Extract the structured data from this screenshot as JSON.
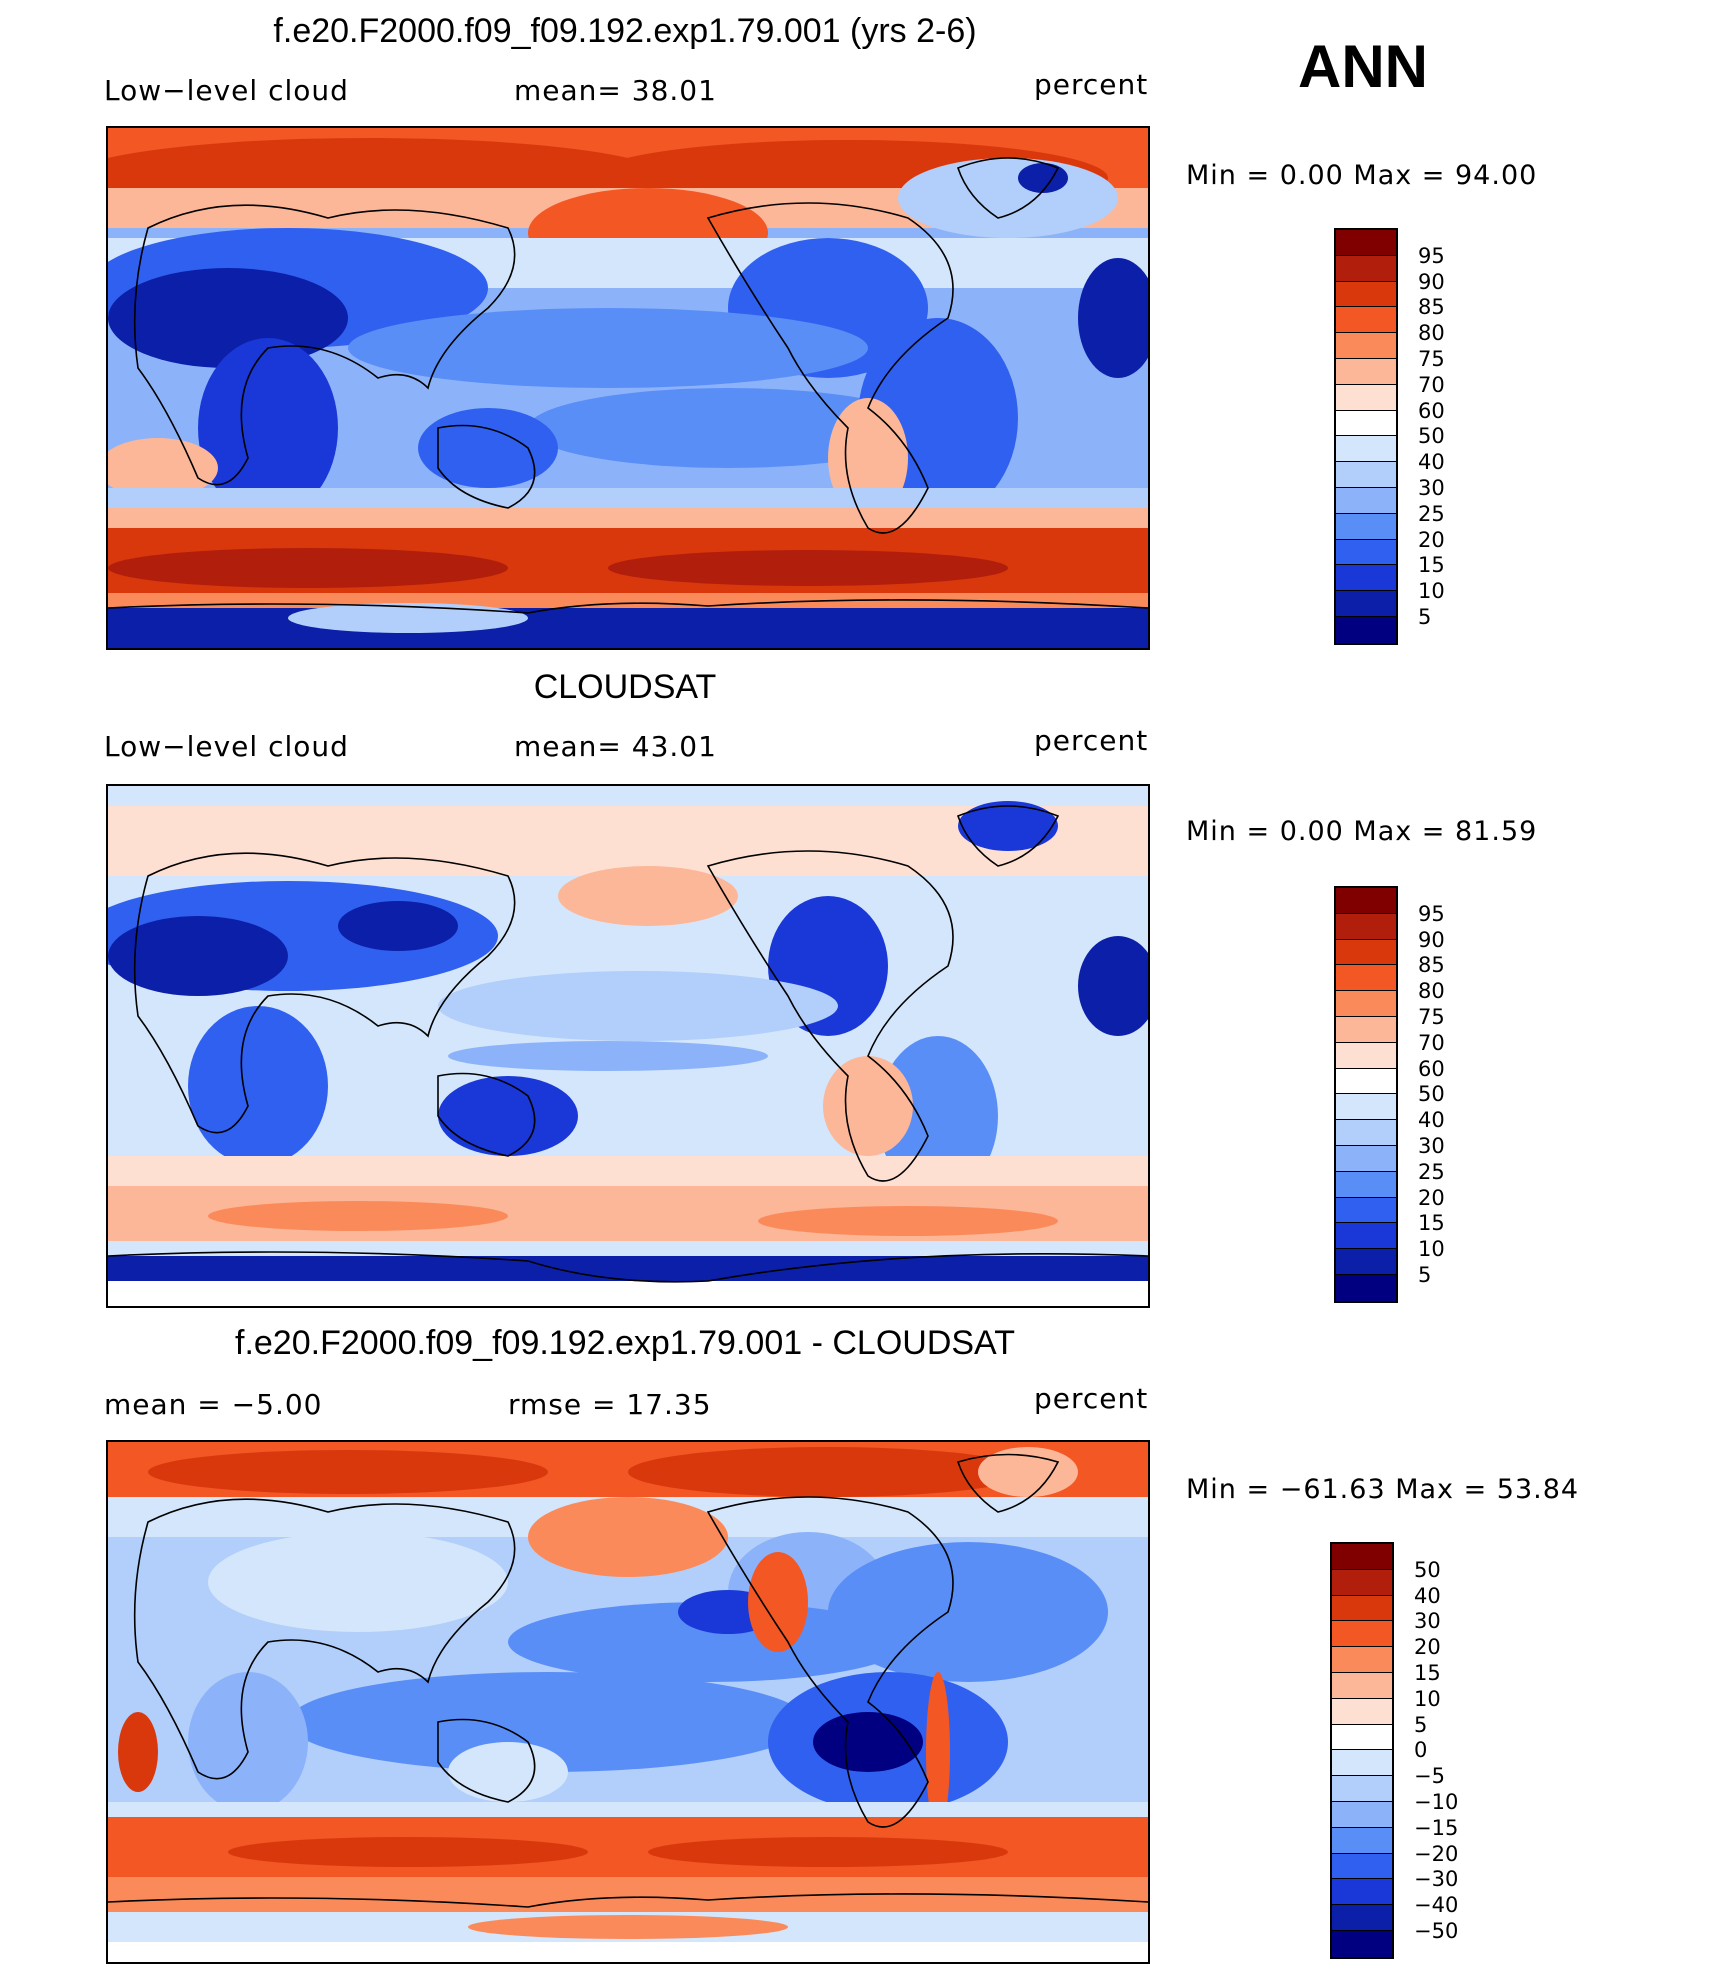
{
  "season": "ANN",
  "panels": [
    {
      "title": "f.e20.F2000.f09_f09.192.exp1.79.001 (yrs 2-6)",
      "left_text": "Low−level cloud",
      "center_text": "mean=   38.01",
      "right_text": "percent",
      "minmax": "Min  =     0.00  Max  =    94.00"
    },
    {
      "title": "CLOUDSAT",
      "left_text": "Low−level cloud",
      "center_text": "mean=   43.01",
      "right_text": "percent",
      "minmax": "Min  =     0.00  Max  =    81.59"
    },
    {
      "title": "f.e20.F2000.f09_f09.192.exp1.79.001 - CLOUDSAT",
      "left_text": "mean  =    −5.00",
      "center_text": "rmse  =    17.35",
      "right_text": "percent",
      "minmax": "Min  = −61.63  Max  =    53.84"
    }
  ],
  "chart_data": [
    {
      "type": "heatmap",
      "title": "f.e20.F2000.f09_f09.192.exp1.79.001 (yrs 2-6)",
      "field": "Low-level cloud",
      "units": "percent",
      "mean": 38.01,
      "min": 0.0,
      "max": 94.0,
      "colorbar_levels": [
        "95",
        "90",
        "85",
        "80",
        "75",
        "70",
        "60",
        "50",
        "40",
        "30",
        "25",
        "20",
        "15",
        "10",
        "5"
      ],
      "colors": [
        "#800000",
        "#b21e0c",
        "#d9380d",
        "#f25724",
        "#fb8a5a",
        "#fcb698",
        "#fee0d2",
        "#ffffff",
        "#d4e6fb",
        "#b1cffa",
        "#8cb3fa",
        "#5a8ef7",
        "#3060f0",
        "#1a38d8",
        "#0c1fa8",
        "#000080"
      ]
    },
    {
      "type": "heatmap",
      "title": "CLOUDSAT",
      "field": "Low-level cloud",
      "units": "percent",
      "mean": 43.01,
      "min": 0.0,
      "max": 81.59,
      "colorbar_levels": [
        "95",
        "90",
        "85",
        "80",
        "75",
        "70",
        "60",
        "50",
        "40",
        "30",
        "25",
        "20",
        "15",
        "10",
        "5"
      ],
      "colors": [
        "#800000",
        "#b21e0c",
        "#d9380d",
        "#f25724",
        "#fb8a5a",
        "#fcb698",
        "#fee0d2",
        "#ffffff",
        "#d4e6fb",
        "#b1cffa",
        "#8cb3fa",
        "#5a8ef7",
        "#3060f0",
        "#1a38d8",
        "#0c1fa8",
        "#000080"
      ]
    },
    {
      "type": "heatmap",
      "title": "f.e20.F2000.f09_f09.192.exp1.79.001 - CLOUDSAT",
      "units": "percent",
      "mean": -5.0,
      "rmse": 17.35,
      "min": -61.63,
      "max": 53.84,
      "colorbar_levels": [
        "50",
        "40",
        "30",
        "20",
        "15",
        "10",
        "5",
        "0",
        "−5",
        "−10",
        "−15",
        "−20",
        "−30",
        "−40",
        "−50"
      ],
      "colors": [
        "#800000",
        "#b21e0c",
        "#d9380d",
        "#f25724",
        "#fb8a5a",
        "#fcb698",
        "#fee0d2",
        "#ffffff",
        "#d4e6fb",
        "#b1cffa",
        "#8cb3fa",
        "#5a8ef7",
        "#3060f0",
        "#1a38d8",
        "#0c1fa8",
        "#000080"
      ]
    }
  ]
}
